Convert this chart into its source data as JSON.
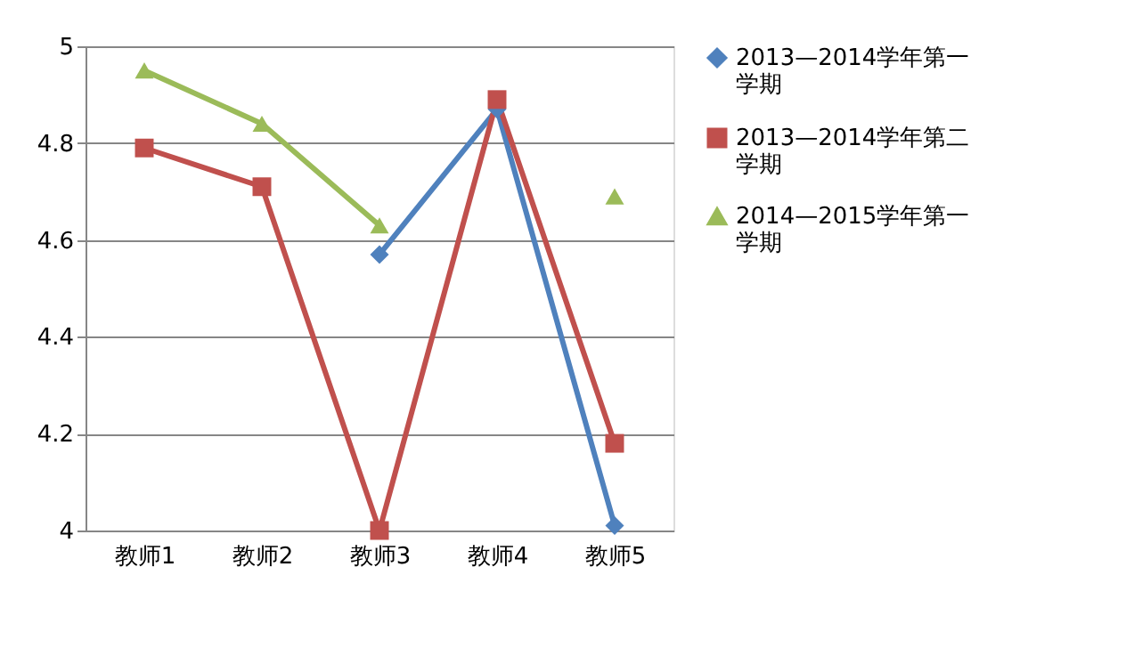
{
  "chart_data": {
    "type": "line",
    "categories": [
      "教师1",
      "教师2",
      "教师3",
      "教师4",
      "教师5"
    ],
    "series": [
      {
        "name": "2013—2014学年第一学期",
        "color": "#4f81bd",
        "marker": "diamond",
        "values": [
          null,
          null,
          4.57,
          4.87,
          4.01
        ]
      },
      {
        "name": "2013—2014学年第二学期",
        "color": "#c0504d",
        "marker": "square",
        "values": [
          4.79,
          4.71,
          4.0,
          4.89,
          4.18
        ]
      },
      {
        "name": "2014—2015学年第一学期",
        "color": "#9bbb59",
        "marker": "triangle",
        "values": [
          4.95,
          4.84,
          4.63,
          null,
          4.69
        ]
      }
    ],
    "ylim": [
      4,
      5
    ],
    "yticks": [
      4,
      4.2,
      4.4,
      4.6,
      4.8,
      5
    ],
    "grid": "y",
    "legend": "right"
  }
}
